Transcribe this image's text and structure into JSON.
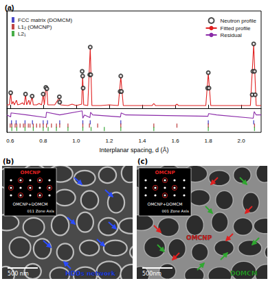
{
  "chart_data": {
    "type": "line",
    "label": "(a)",
    "x_label": "Interplanar spacing, d (Å)",
    "xlim": [
      0.58,
      2.12
    ],
    "xticks": [
      0.6,
      0.8,
      {
        "value": 1,
        "label": "1.0"
      },
      1.2,
      1.4,
      1.6,
      1.8,
      {
        "value": 2,
        "label": "2.0"
      }
    ],
    "ylim": [
      -0.36,
      1.45
    ],
    "yticks": [],
    "tick_labels": "x",
    "grid": false,
    "legend": "upper right",
    "series": [
      {
        "name": "Neutron profile",
        "type": "scatter",
        "marker": "circle",
        "color": "#222222",
        "x": [
          0.603,
          0.693,
          0.733,
          0.8,
          0.816,
          0.822,
          0.898,
          0.9,
          1.036,
          1.039,
          1.042,
          1.082,
          1.085,
          1.088,
          1.266,
          1.27,
          1.274,
          1.796,
          1.8,
          1.804,
          2.066,
          2.07,
          2.075,
          2.08,
          2.084
        ],
        "values": [
          0.23,
          0.21,
          0.18,
          0.21,
          0.31,
          0.29,
          0.17,
          0.09,
          0.55,
          0.48,
          0.3,
          0.5,
          0.91,
          0.5,
          0.25,
          0.48,
          0.25,
          0.3,
          0.53,
          0.3,
          0.2,
          0.55,
          0.96,
          0.55,
          0.2
        ]
      },
      {
        "name": "Fitted profile",
        "type": "line",
        "line_style": "solid",
        "color": "#e02020",
        "x": [
          0.58,
          0.595,
          0.603,
          0.61,
          0.618,
          0.625,
          0.638,
          0.645,
          0.66,
          0.675,
          0.685,
          0.693,
          0.7,
          0.713,
          0.72,
          0.733,
          0.74,
          0.76,
          0.775,
          0.79,
          0.8,
          0.807,
          0.816,
          0.822,
          0.828,
          0.85,
          0.87,
          0.898,
          0.905,
          0.95,
          0.975,
          1.0,
          1.033,
          1.039,
          1.045,
          1.07,
          1.085,
          1.095,
          1.15,
          1.2,
          1.255,
          1.27,
          1.285,
          1.35,
          1.46,
          1.47,
          1.48,
          1.6,
          1.61,
          1.62,
          1.785,
          1.8,
          1.815,
          1.95,
          2.055,
          2.075,
          2.09,
          2.12
        ],
        "values": [
          0.05,
          0.05,
          0.22,
          0.06,
          0.1,
          0.05,
          0.12,
          0.05,
          0.06,
          0.08,
          0.05,
          0.2,
          0.05,
          0.12,
          0.05,
          0.17,
          0.05,
          0.05,
          0.07,
          0.05,
          0.2,
          0.05,
          0.3,
          0.28,
          0.05,
          0.05,
          0.05,
          0.16,
          0.05,
          0.04,
          0.06,
          0.04,
          0.06,
          0.5,
          0.05,
          0.04,
          0.9,
          0.04,
          0.04,
          0.05,
          0.04,
          0.47,
          0.04,
          0.04,
          0.04,
          0.07,
          0.04,
          0.04,
          0.06,
          0.04,
          0.04,
          0.52,
          0.04,
          0.04,
          0.04,
          0.95,
          0.04,
          0.04
        ]
      },
      {
        "name": "Residual",
        "type": "line",
        "line_style": "solid",
        "color": "#8a2aa8",
        "x": [
          0.58,
          0.603,
          0.605,
          0.7,
          0.816,
          0.82,
          0.9,
          1.036,
          1.04,
          1.05,
          1.083,
          1.087,
          1.1,
          1.268,
          1.272,
          1.3,
          1.798,
          1.802,
          1.85,
          2.072,
          2.078,
          2.09,
          2.12
        ],
        "values": [
          -0.1,
          -0.13,
          -0.07,
          -0.1,
          -0.14,
          -0.06,
          -0.1,
          -0.04,
          -0.15,
          -0.1,
          -0.14,
          -0.06,
          -0.1,
          -0.13,
          -0.07,
          -0.1,
          -0.12,
          -0.08,
          -0.1,
          -0.15,
          -0.05,
          -0.1,
          -0.1
        ]
      },
      {
        "name": "FCC matrix (DOMCM)",
        "type": "reflections",
        "marker": "bar",
        "color": "#1a1ab8",
        "x": [
          0.608,
          0.636,
          0.69,
          0.735,
          0.8,
          0.826,
          0.9,
          1.04,
          1.085,
          1.27,
          1.8,
          2.075
        ]
      },
      {
        "name": "L1₂ (OMCNP)",
        "type": "reflections",
        "marker": "bar",
        "color": "#b01818",
        "x": [
          0.6,
          0.61,
          0.63,
          0.64,
          0.66,
          0.68,
          0.69,
          0.71,
          0.72,
          0.74,
          0.76,
          0.78,
          0.8,
          0.82,
          0.85,
          0.88,
          0.9,
          0.95,
          1.04,
          1.08,
          1.13,
          1.27,
          1.47,
          1.61,
          1.8,
          2.08
        ]
      },
      {
        "name": "L2₁",
        "type": "reflections",
        "marker": "bar",
        "color": "#1a9a1a",
        "x": [
          0.61,
          0.64,
          0.69,
          0.74,
          0.8,
          0.83,
          0.88,
          0.95,
          1.04,
          1.09,
          1.17,
          1.27,
          1.47,
          1.8,
          2.08
        ]
      }
    ]
  },
  "micrographs": [
    {
      "label": "(b)",
      "style": "network",
      "inset": {
        "title": "OMCNP",
        "title_color": "#e02020",
        "caption": "OMCNP+DOMCM",
        "zone_axis": "011 Zone Axis"
      },
      "annotations": [
        {
          "text": "HDDs network",
          "color": "#2b4cff"
        }
      ],
      "scale_bar": "500 nm"
    },
    {
      "label": "(c)",
      "style": "precipitates",
      "inset": {
        "title": "OMCNP",
        "title_color": "#e02020",
        "caption": "OMCNP+DOMCM",
        "zone_axis": "001 Zone Axis"
      },
      "annotations": [
        {
          "text": "OMCNP",
          "color": "#e02020"
        },
        {
          "text": "DOMCM",
          "color": "#2fa82f"
        }
      ],
      "scale_bar": "500nm"
    }
  ]
}
